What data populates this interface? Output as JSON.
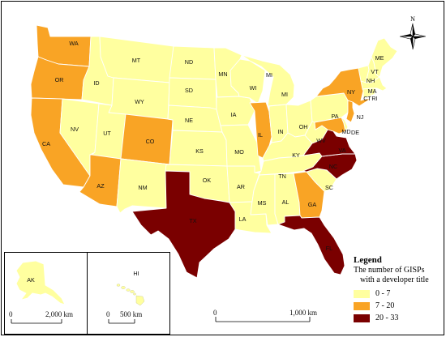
{
  "legend": {
    "title": "Legend",
    "subtitle_line1": "The number of GISPs",
    "subtitle_line2": "with a developer title",
    "classes": [
      {
        "label": "0 - 7",
        "color": "#ffff9f"
      },
      {
        "label": "7 - 20",
        "color": "#f9a425"
      },
      {
        "label": "20 - 33",
        "color": "#7a0000"
      }
    ]
  },
  "north_arrow": {
    "label": "N"
  },
  "scale_main": {
    "start": "0",
    "end": "1,000 km"
  },
  "inset_alaska": {
    "label": "AK",
    "scale_start": "0",
    "scale_end": "2,000 km"
  },
  "inset_hawaii": {
    "label": "HI",
    "scale_start": "0",
    "scale_end": "500 km"
  },
  "states": [
    {
      "code": "WA",
      "class": 1
    },
    {
      "code": "OR",
      "class": 1
    },
    {
      "code": "CA",
      "class": 1
    },
    {
      "code": "ID",
      "class": 0
    },
    {
      "code": "NV",
      "class": 0
    },
    {
      "code": "MT",
      "class": 0
    },
    {
      "code": "WY",
      "class": 0
    },
    {
      "code": "UT",
      "class": 0
    },
    {
      "code": "AZ",
      "class": 1
    },
    {
      "code": "CO",
      "class": 1
    },
    {
      "code": "NM",
      "class": 0
    },
    {
      "code": "ND",
      "class": 0
    },
    {
      "code": "SD",
      "class": 0
    },
    {
      "code": "NE",
      "class": 0
    },
    {
      "code": "KS",
      "class": 0
    },
    {
      "code": "OK",
      "class": 0
    },
    {
      "code": "TX",
      "class": 2
    },
    {
      "code": "MN",
      "class": 0
    },
    {
      "code": "IA",
      "class": 0
    },
    {
      "code": "MO",
      "class": 0
    },
    {
      "code": "AR",
      "class": 0
    },
    {
      "code": "LA",
      "class": 0
    },
    {
      "code": "WI",
      "class": 0
    },
    {
      "code": "IL",
      "class": 1
    },
    {
      "code": "MI",
      "class": 0
    },
    {
      "code": "IN",
      "class": 0
    },
    {
      "code": "OH",
      "class": 0
    },
    {
      "code": "KY",
      "class": 0
    },
    {
      "code": "TN",
      "class": 0
    },
    {
      "code": "MS",
      "class": 0
    },
    {
      "code": "AL",
      "class": 0
    },
    {
      "code": "GA",
      "class": 1
    },
    {
      "code": "FL",
      "class": 2
    },
    {
      "code": "SC",
      "class": 0
    },
    {
      "code": "NC",
      "class": 2
    },
    {
      "code": "VA",
      "class": 2
    },
    {
      "code": "WV",
      "class": 0
    },
    {
      "code": "PA",
      "class": 0
    },
    {
      "code": "NY",
      "class": 1
    },
    {
      "code": "VT",
      "class": 0
    },
    {
      "code": "NH",
      "class": 0
    },
    {
      "code": "ME",
      "class": 0
    },
    {
      "code": "MA",
      "class": 0
    },
    {
      "code": "CT",
      "class": 0
    },
    {
      "code": "RI",
      "class": 0
    },
    {
      "code": "NJ",
      "class": 1
    },
    {
      "code": "MD",
      "class": 1
    },
    {
      "code": "DE",
      "class": 0
    },
    {
      "code": "AK",
      "class": 0
    },
    {
      "code": "HI",
      "class": 0
    }
  ]
}
